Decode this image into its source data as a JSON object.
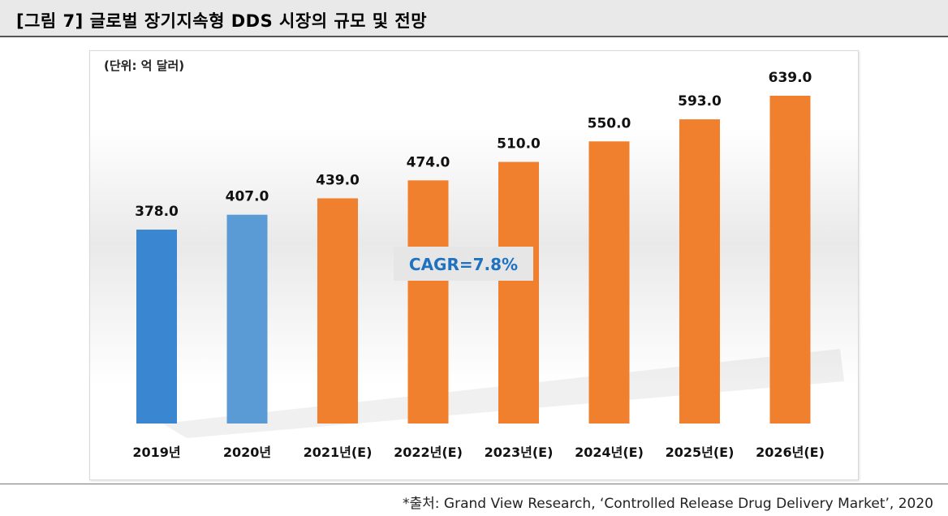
{
  "title": "[그림 7] 글로벌 장기지속형 DDS 시장의 규모 및 전망",
  "source": "*출처: Grand View Research, ‘Controlled Release Drug Delivery Market’, 2020",
  "chart_data": {
    "type": "bar",
    "unit_label": "(단위: 억 달러)",
    "categories": [
      "2019년",
      "2020년",
      "2021년(E)",
      "2022년(E)",
      "2023년(E)",
      "2024년(E)",
      "2025년(E)",
      "2026년(E)"
    ],
    "values": [
      378.0,
      407.0,
      439.0,
      474.0,
      510.0,
      550.0,
      593.0,
      639.0
    ],
    "value_labels": [
      "378.0",
      "407.0",
      "439.0",
      "474.0",
      "510.0",
      "550.0",
      "593.0",
      "639.0"
    ],
    "bar_colors": [
      "#3a86d0",
      "#5b9bd5",
      "#f07f2e",
      "#f07f2e",
      "#f07f2e",
      "#f07f2e",
      "#f07f2e",
      "#f07f2e"
    ],
    "annotation": "CAGR=7.8%",
    "annotation_color": "#1f72c0",
    "ylim": [
      0,
      639.0
    ],
    "grid": false,
    "legend": "none"
  }
}
